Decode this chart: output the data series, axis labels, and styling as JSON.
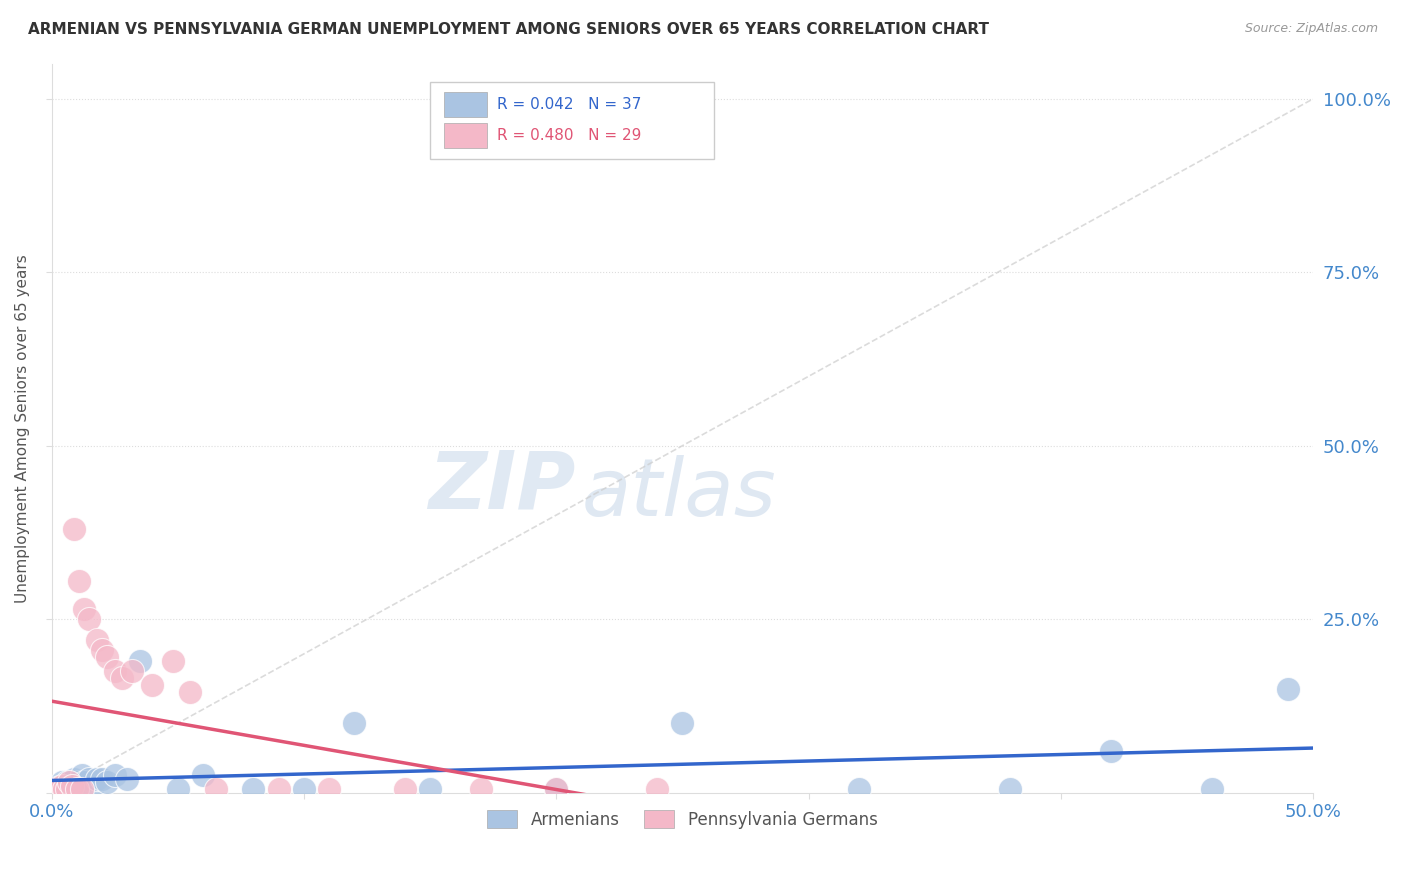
{
  "title": "ARMENIAN VS PENNSYLVANIA GERMAN UNEMPLOYMENT AMONG SENIORS OVER 65 YEARS CORRELATION CHART",
  "source": "Source: ZipAtlas.com",
  "ylabel": "Unemployment Among Seniors over 65 years",
  "xlim": [
    0.0,
    0.5
  ],
  "ylim": [
    0.0,
    1.05
  ],
  "watermark_zip": "ZIP",
  "watermark_atlas": "atlas",
  "armenians_R": "0.042",
  "armenians_N": "37",
  "pa_german_R": "0.480",
  "pa_german_N": "29",
  "armenians_color": "#aac4e2",
  "armenians_line_color": "#3366cc",
  "pa_german_color": "#f4b8c8",
  "pa_german_line_color": "#e05575",
  "diag_line_color": "#cccccc",
  "grid_color": "#dddddd",
  "title_color": "#333333",
  "source_color": "#999999",
  "tick_label_color": "#4488cc",
  "armenians_x": [
    0.002,
    0.003,
    0.004,
    0.004,
    0.005,
    0.005,
    0.006,
    0.006,
    0.007,
    0.008,
    0.009,
    0.01,
    0.01,
    0.011,
    0.012,
    0.013,
    0.015,
    0.016,
    0.018,
    0.02,
    0.022,
    0.025,
    0.03,
    0.035,
    0.05,
    0.06,
    0.08,
    0.1,
    0.12,
    0.15,
    0.2,
    0.25,
    0.32,
    0.38,
    0.42,
    0.46,
    0.49
  ],
  "armenians_y": [
    0.005,
    0.01,
    0.005,
    0.015,
    0.01,
    0.005,
    0.015,
    0.005,
    0.01,
    0.005,
    0.02,
    0.01,
    0.005,
    0.015,
    0.025,
    0.015,
    0.02,
    0.005,
    0.02,
    0.02,
    0.015,
    0.025,
    0.02,
    0.19,
    0.005,
    0.025,
    0.005,
    0.005,
    0.1,
    0.005,
    0.005,
    0.1,
    0.005,
    0.005,
    0.06,
    0.005,
    0.15
  ],
  "pa_german_x": [
    0.002,
    0.003,
    0.004,
    0.005,
    0.006,
    0.007,
    0.008,
    0.009,
    0.01,
    0.011,
    0.012,
    0.013,
    0.015,
    0.018,
    0.02,
    0.022,
    0.025,
    0.028,
    0.032,
    0.04,
    0.048,
    0.055,
    0.065,
    0.09,
    0.11,
    0.14,
    0.17,
    0.2,
    0.24
  ],
  "pa_german_y": [
    0.005,
    0.008,
    0.01,
    0.005,
    0.005,
    0.015,
    0.01,
    0.38,
    0.005,
    0.305,
    0.005,
    0.265,
    0.25,
    0.22,
    0.205,
    0.195,
    0.175,
    0.165,
    0.175,
    0.155,
    0.19,
    0.145,
    0.005,
    0.005,
    0.005,
    0.005,
    0.005,
    0.005,
    0.005
  ]
}
